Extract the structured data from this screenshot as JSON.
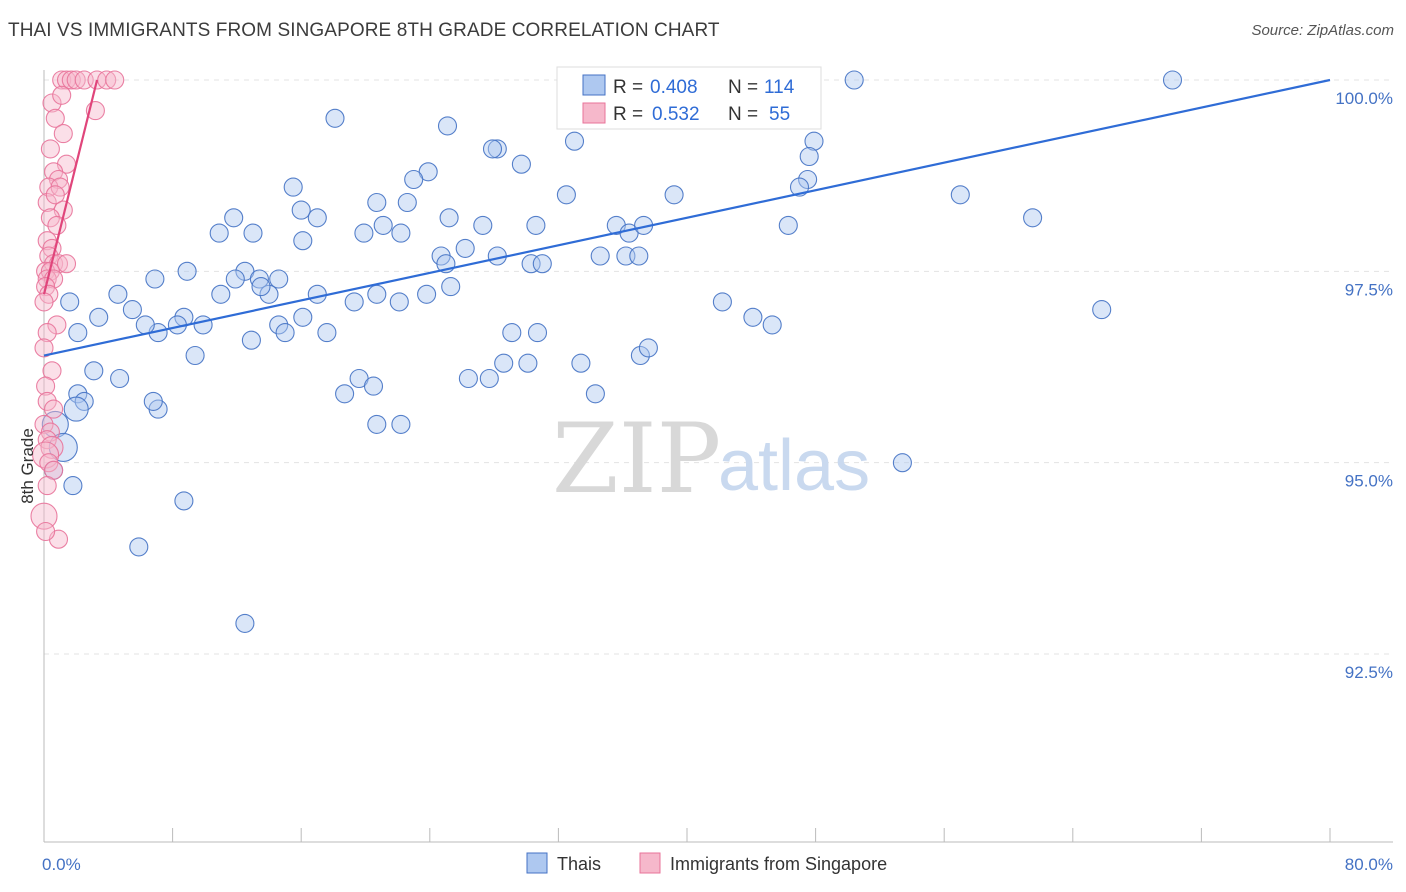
{
  "header": {
    "title": "THAI VS IMMIGRANTS FROM SINGAPORE 8TH GRADE CORRELATION CHART",
    "source": "Source: ZipAtlas.com"
  },
  "watermark": {
    "zip": "ZIP",
    "atlas": "atlas"
  },
  "colors": {
    "blue": "#4472c4",
    "blue_fill": "#aec8f0",
    "blue_line": "#2f6cd6",
    "pink": "#e8739a",
    "pink_fill": "#f6b8cb",
    "pink_line": "#e0457b"
  },
  "stats_box": {
    "rows": [
      {
        "r_label": "R = ",
        "r_value": "0.408",
        "n_label": "N = ",
        "n_value": "114"
      },
      {
        "r_label": "R = ",
        "r_value": "0.532",
        "n_label": "N = ",
        "n_value": "55"
      }
    ]
  },
  "chart_data": {
    "type": "scatter",
    "title": "THAI VS IMMIGRANTS FROM SINGAPORE 8TH GRADE CORRELATION CHART",
    "ylabel": "8th Grade",
    "xlabel": "",
    "xlim": [
      0,
      80
    ],
    "ylim": [
      90.0,
      100.2
    ],
    "x_tick_labels": [
      "0.0%",
      "80.0%"
    ],
    "y_ticks": [
      {
        "value": 100.0,
        "label": "100.0%"
      },
      {
        "value": 97.5,
        "label": "97.5%"
      },
      {
        "value": 95.0,
        "label": "95.0%"
      },
      {
        "value": 92.5,
        "label": "92.5%"
      }
    ],
    "grid": true,
    "legend": [
      "Thais",
      "Immigrants from Singapore"
    ],
    "series": [
      {
        "name": "Thais",
        "color": "#4472c4",
        "R": 0.408,
        "N": 114,
        "trend": {
          "x": [
            0,
            80
          ],
          "y": [
            96.4,
            100.0
          ]
        },
        "points": [
          [
            32.7,
            100.0
          ],
          [
            33.5,
            100.0
          ],
          [
            40.5,
            100.0
          ],
          [
            50.4,
            100.0
          ],
          [
            70.2,
            100.0
          ],
          [
            18.1,
            99.5
          ],
          [
            25.1,
            99.4
          ],
          [
            28.2,
            99.1
          ],
          [
            33.0,
            99.2
          ],
          [
            27.9,
            99.1
          ],
          [
            47.9,
            99.2
          ],
          [
            47.6,
            99.0
          ],
          [
            29.7,
            98.9
          ],
          [
            23.9,
            98.8
          ],
          [
            23.0,
            98.7
          ],
          [
            32.5,
            98.5
          ],
          [
            39.2,
            98.5
          ],
          [
            47.5,
            98.7
          ],
          [
            47.0,
            98.6
          ],
          [
            15.5,
            98.6
          ],
          [
            16.0,
            98.3
          ],
          [
            20.7,
            98.4
          ],
          [
            22.6,
            98.4
          ],
          [
            11.8,
            98.2
          ],
          [
            17.0,
            98.2
          ],
          [
            25.2,
            98.2
          ],
          [
            27.3,
            98.1
          ],
          [
            19.9,
            98.0
          ],
          [
            21.1,
            98.1
          ],
          [
            22.2,
            98.0
          ],
          [
            30.6,
            98.1
          ],
          [
            35.6,
            98.1
          ],
          [
            10.9,
            98.0
          ],
          [
            13.0,
            98.0
          ],
          [
            36.4,
            98.0
          ],
          [
            37.3,
            98.1
          ],
          [
            46.3,
            98.1
          ],
          [
            16.1,
            97.9
          ],
          [
            36.2,
            97.7
          ],
          [
            34.6,
            97.7
          ],
          [
            24.7,
            97.7
          ],
          [
            26.2,
            97.8
          ],
          [
            28.2,
            97.7
          ],
          [
            30.3,
            97.6
          ],
          [
            25.0,
            97.6
          ],
          [
            31.0,
            97.6
          ],
          [
            37.0,
            97.7
          ],
          [
            12.5,
            97.5
          ],
          [
            13.4,
            97.4
          ],
          [
            14.6,
            97.4
          ],
          [
            8.9,
            97.5
          ],
          [
            6.9,
            97.4
          ],
          [
            11.0,
            97.2
          ],
          [
            14.0,
            97.2
          ],
          [
            11.9,
            97.4
          ],
          [
            13.5,
            97.3
          ],
          [
            17.0,
            97.2
          ],
          [
            19.3,
            97.1
          ],
          [
            22.1,
            97.1
          ],
          [
            4.6,
            97.2
          ],
          [
            1.6,
            97.1
          ],
          [
            5.5,
            97.0
          ],
          [
            20.7,
            97.2
          ],
          [
            23.8,
            97.2
          ],
          [
            25.3,
            97.3
          ],
          [
            8.7,
            96.9
          ],
          [
            8.3,
            96.8
          ],
          [
            9.9,
            96.8
          ],
          [
            7.1,
            96.7
          ],
          [
            6.3,
            96.8
          ],
          [
            16.1,
            96.9
          ],
          [
            3.4,
            96.9
          ],
          [
            2.1,
            96.7
          ],
          [
            14.6,
            96.8
          ],
          [
            15.0,
            96.7
          ],
          [
            17.6,
            96.7
          ],
          [
            12.9,
            96.6
          ],
          [
            9.4,
            96.4
          ],
          [
            29.1,
            96.7
          ],
          [
            30.7,
            96.7
          ],
          [
            33.4,
            96.3
          ],
          [
            28.6,
            96.3
          ],
          [
            30.1,
            96.3
          ],
          [
            3.1,
            96.2
          ],
          [
            4.7,
            96.1
          ],
          [
            19.6,
            96.1
          ],
          [
            27.7,
            96.1
          ],
          [
            26.4,
            96.1
          ],
          [
            20.5,
            96.0
          ],
          [
            18.7,
            95.9
          ],
          [
            37.1,
            96.4
          ],
          [
            7.1,
            95.7
          ],
          [
            6.8,
            95.8
          ],
          [
            2.1,
            95.9
          ],
          [
            2.5,
            95.8
          ],
          [
            2.0,
            95.7
          ],
          [
            0.7,
            95.5
          ],
          [
            1.2,
            95.2
          ],
          [
            0.6,
            94.9
          ],
          [
            1.8,
            94.7
          ],
          [
            20.7,
            95.5
          ],
          [
            22.2,
            95.5
          ],
          [
            34.3,
            95.9
          ],
          [
            37.6,
            96.5
          ],
          [
            42.2,
            97.1
          ],
          [
            45.3,
            96.8
          ],
          [
            44.1,
            96.9
          ],
          [
            57.0,
            98.5
          ],
          [
            61.5,
            98.2
          ],
          [
            65.8,
            97.0
          ],
          [
            8.7,
            94.5
          ],
          [
            5.9,
            93.9
          ],
          [
            12.5,
            92.9
          ],
          [
            53.4,
            95.0
          ]
        ]
      },
      {
        "name": "Immigrants from Singapore",
        "color": "#e8739a",
        "R": 0.532,
        "N": 55,
        "trend": {
          "x": [
            0,
            3.3
          ],
          "y": [
            97.2,
            100.0
          ]
        },
        "points": [
          [
            1.1,
            100.0
          ],
          [
            1.4,
            100.0
          ],
          [
            1.7,
            100.0
          ],
          [
            2.0,
            100.0
          ],
          [
            2.5,
            100.0
          ],
          [
            3.3,
            100.0
          ],
          [
            3.9,
            100.0
          ],
          [
            4.4,
            100.0
          ],
          [
            0.5,
            99.7
          ],
          [
            1.1,
            99.8
          ],
          [
            3.2,
            99.6
          ],
          [
            0.7,
            99.5
          ],
          [
            1.2,
            99.3
          ],
          [
            0.4,
            99.1
          ],
          [
            1.4,
            98.9
          ],
          [
            0.6,
            98.8
          ],
          [
            0.9,
            98.7
          ],
          [
            0.3,
            98.6
          ],
          [
            1.0,
            98.6
          ],
          [
            0.2,
            98.4
          ],
          [
            0.7,
            98.5
          ],
          [
            1.2,
            98.3
          ],
          [
            0.4,
            98.2
          ],
          [
            0.8,
            98.1
          ],
          [
            0.2,
            97.9
          ],
          [
            0.5,
            97.8
          ],
          [
            0.3,
            97.7
          ],
          [
            0.6,
            97.6
          ],
          [
            0.9,
            97.6
          ],
          [
            1.4,
            97.6
          ],
          [
            0.1,
            97.5
          ],
          [
            0.4,
            97.5
          ],
          [
            0.2,
            97.4
          ],
          [
            0.6,
            97.4
          ],
          [
            0.1,
            97.3
          ],
          [
            0.3,
            97.2
          ],
          [
            0.0,
            97.1
          ],
          [
            0.8,
            96.8
          ],
          [
            0.2,
            96.7
          ],
          [
            0.0,
            96.5
          ],
          [
            0.5,
            96.2
          ],
          [
            0.1,
            96.0
          ],
          [
            0.2,
            95.8
          ],
          [
            0.6,
            95.7
          ],
          [
            0.0,
            95.5
          ],
          [
            0.4,
            95.4
          ],
          [
            0.2,
            95.3
          ],
          [
            0.5,
            95.2
          ],
          [
            0.1,
            95.1
          ],
          [
            0.3,
            95.0
          ],
          [
            0.6,
            94.9
          ],
          [
            0.2,
            94.7
          ],
          [
            0.0,
            94.3
          ],
          [
            0.9,
            94.0
          ],
          [
            0.1,
            94.1
          ]
        ]
      }
    ]
  }
}
